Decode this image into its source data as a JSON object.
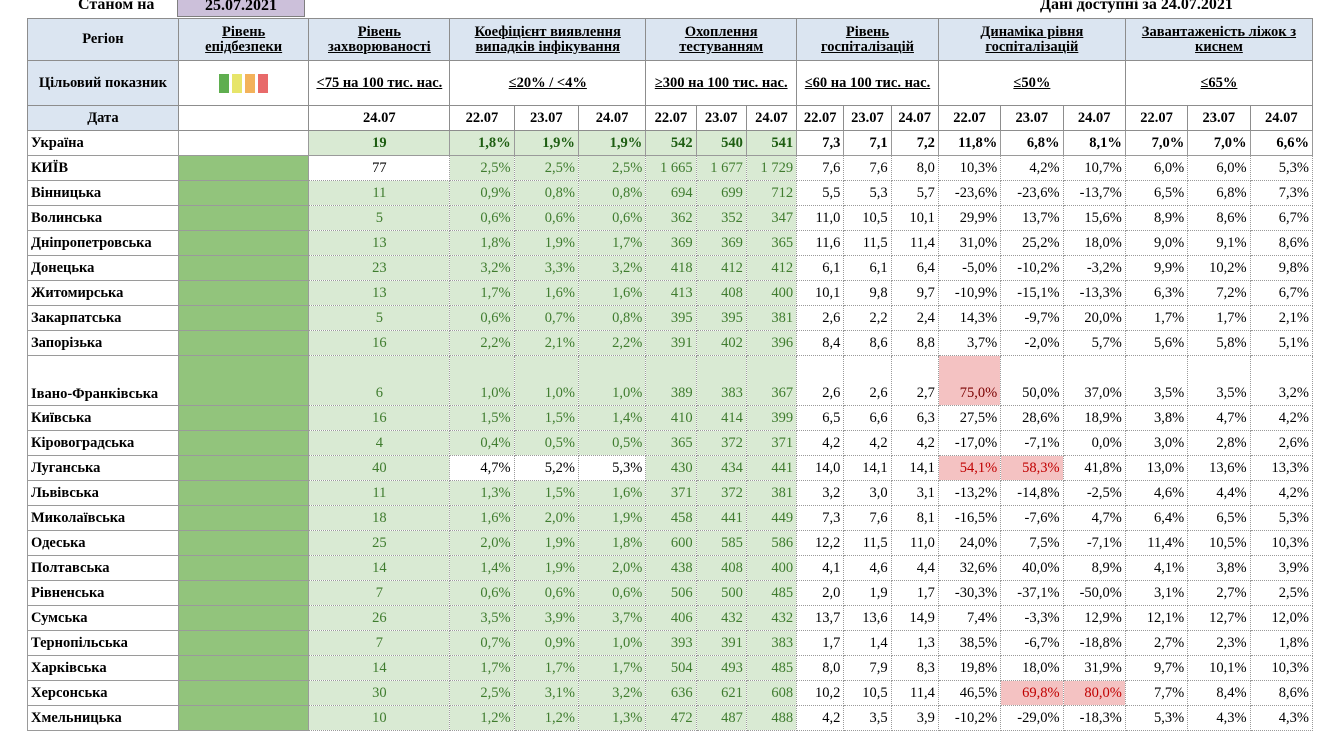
{
  "header": {
    "as_of_label": "Станом на",
    "as_of_date": "25.07.2021",
    "data_available_label": "Дані доступні за",
    "data_available_date": "24.07.2021"
  },
  "columns": {
    "region": "Регіон",
    "epi_level": "Рівень епідбезпеки",
    "incidence": "Рівень захворюваності",
    "detection": "Коефіцієнт виявлення випадків інфікування",
    "testing": "Охоплення тестуванням",
    "hospitalization": "Рівень госпіталізацій",
    "hosp_dynamics": "Динаміка рівня госпіталізацій",
    "oxygen_beds": "Завантаженість ліжок з киснем"
  },
  "target": {
    "label": "Цільовий показник",
    "incidence": "<75 на 100 тис. нас.",
    "detection": "≤20% / <4%",
    "testing": "≥300 на 100 тис. нас.",
    "hospitalization": "≤60 на 100 тис. нас.",
    "hosp_dynamics": "≤50%",
    "oxygen_beds": "≤65%",
    "legend_colors": [
      "#5fae4f",
      "#e7e56a",
      "#f3b25a",
      "#e86a6a"
    ]
  },
  "dates": {
    "label": "Дата",
    "incidence": "24.07",
    "days": [
      "22.07",
      "23.07",
      "24.07"
    ]
  },
  "rows": [
    {
      "name": "Україна",
      "inc": "19",
      "det": [
        "1,8%",
        "1,9%",
        "1,9%"
      ],
      "test": [
        "542",
        "540",
        "541"
      ],
      "hosp": [
        "7,3",
        "7,1",
        "7,2"
      ],
      "dyn": [
        "11,8%",
        "6,8%",
        "8,1%"
      ],
      "oxy": [
        "7,0%",
        "7,0%",
        "6,6%"
      ]
    },
    {
      "name": "КИЇВ",
      "inc": "77",
      "det": [
        "2,5%",
        "2,5%",
        "2,5%"
      ],
      "test": [
        "1 665",
        "1 677",
        "1 729"
      ],
      "hosp": [
        "7,6",
        "7,6",
        "8,0"
      ],
      "dyn": [
        "10,3%",
        "4,2%",
        "10,7%"
      ],
      "oxy": [
        "6,0%",
        "6,0%",
        "5,3%"
      ]
    },
    {
      "name": "Вінницька",
      "inc": "11",
      "det": [
        "0,9%",
        "0,8%",
        "0,8%"
      ],
      "test": [
        "694",
        "699",
        "712"
      ],
      "hosp": [
        "5,5",
        "5,3",
        "5,7"
      ],
      "dyn": [
        "-23,6%",
        "-23,6%",
        "-13,7%"
      ],
      "oxy": [
        "6,5%",
        "6,8%",
        "7,3%"
      ]
    },
    {
      "name": "Волинська",
      "inc": "5",
      "det": [
        "0,6%",
        "0,6%",
        "0,6%"
      ],
      "test": [
        "362",
        "352",
        "347"
      ],
      "hosp": [
        "11,0",
        "10,5",
        "10,1"
      ],
      "dyn": [
        "29,9%",
        "13,7%",
        "15,6%"
      ],
      "oxy": [
        "8,9%",
        "8,6%",
        "6,7%"
      ]
    },
    {
      "name": "Дніпропетровська",
      "inc": "13",
      "det": [
        "1,8%",
        "1,9%",
        "1,7%"
      ],
      "test": [
        "369",
        "369",
        "365"
      ],
      "hosp": [
        "11,6",
        "11,5",
        "11,4"
      ],
      "dyn": [
        "31,0%",
        "25,2%",
        "18,0%"
      ],
      "oxy": [
        "9,0%",
        "9,1%",
        "8,6%"
      ]
    },
    {
      "name": "Донецька",
      "inc": "23",
      "det": [
        "3,2%",
        "3,3%",
        "3,2%"
      ],
      "test": [
        "418",
        "412",
        "412"
      ],
      "hosp": [
        "6,1",
        "6,1",
        "6,4"
      ],
      "dyn": [
        "-5,0%",
        "-10,2%",
        "-3,2%"
      ],
      "oxy": [
        "9,9%",
        "10,2%",
        "9,8%"
      ]
    },
    {
      "name": "Житомирська",
      "inc": "13",
      "det": [
        "1,7%",
        "1,6%",
        "1,6%"
      ],
      "test": [
        "413",
        "408",
        "400"
      ],
      "hosp": [
        "10,1",
        "9,8",
        "9,7"
      ],
      "dyn": [
        "-10,9%",
        "-15,1%",
        "-13,3%"
      ],
      "oxy": [
        "6,3%",
        "7,2%",
        "6,7%"
      ]
    },
    {
      "name": "Закарпатська",
      "inc": "5",
      "det": [
        "0,6%",
        "0,7%",
        "0,8%"
      ],
      "test": [
        "395",
        "395",
        "381"
      ],
      "hosp": [
        "2,6",
        "2,2",
        "2,4"
      ],
      "dyn": [
        "14,3%",
        "-9,7%",
        "20,0%"
      ],
      "oxy": [
        "1,7%",
        "1,7%",
        "2,1%"
      ]
    },
    {
      "name": "Запорізька",
      "inc": "16",
      "det": [
        "2,2%",
        "2,1%",
        "2,2%"
      ],
      "test": [
        "391",
        "402",
        "396"
      ],
      "hosp": [
        "8,4",
        "8,6",
        "8,8"
      ],
      "dyn": [
        "3,7%",
        "-2,0%",
        "5,7%"
      ],
      "oxy": [
        "5,6%",
        "5,8%",
        "5,1%"
      ]
    },
    {
      "name": "Івано-Франківська",
      "inc": "6",
      "det": [
        "1,0%",
        "1,0%",
        "1,0%"
      ],
      "test": [
        "389",
        "383",
        "367"
      ],
      "hosp": [
        "2,6",
        "2,6",
        "2,7"
      ],
      "dyn": [
        "75,0%",
        "50,0%",
        "37,0%"
      ],
      "oxy": [
        "3,5%",
        "3,5%",
        "3,2%"
      ]
    },
    {
      "name": "Київська",
      "inc": "16",
      "det": [
        "1,5%",
        "1,5%",
        "1,4%"
      ],
      "test": [
        "410",
        "414",
        "399"
      ],
      "hosp": [
        "6,5",
        "6,6",
        "6,3"
      ],
      "dyn": [
        "27,5%",
        "28,6%",
        "18,9%"
      ],
      "oxy": [
        "3,8%",
        "4,7%",
        "4,2%"
      ]
    },
    {
      "name": "Кіровоградська",
      "inc": "4",
      "det": [
        "0,4%",
        "0,5%",
        "0,5%"
      ],
      "test": [
        "365",
        "372",
        "371"
      ],
      "hosp": [
        "4,2",
        "4,2",
        "4,2"
      ],
      "dyn": [
        "-17,0%",
        "-7,1%",
        "0,0%"
      ],
      "oxy": [
        "3,0%",
        "2,8%",
        "2,6%"
      ]
    },
    {
      "name": "Луганська",
      "inc": "40",
      "det": [
        "4,7%",
        "5,2%",
        "5,3%"
      ],
      "test": [
        "430",
        "434",
        "441"
      ],
      "hosp": [
        "14,0",
        "14,1",
        "14,1"
      ],
      "dyn": [
        "54,1%",
        "58,3%",
        "41,8%"
      ],
      "oxy": [
        "13,0%",
        "13,6%",
        "13,3%"
      ]
    },
    {
      "name": "Львівська",
      "inc": "11",
      "det": [
        "1,3%",
        "1,5%",
        "1,6%"
      ],
      "test": [
        "371",
        "372",
        "381"
      ],
      "hosp": [
        "3,2",
        "3,0",
        "3,1"
      ],
      "dyn": [
        "-13,2%",
        "-14,8%",
        "-2,5%"
      ],
      "oxy": [
        "4,6%",
        "4,4%",
        "4,2%"
      ]
    },
    {
      "name": "Миколаївська",
      "inc": "18",
      "det": [
        "1,6%",
        "2,0%",
        "1,9%"
      ],
      "test": [
        "458",
        "441",
        "449"
      ],
      "hosp": [
        "7,3",
        "7,6",
        "8,1"
      ],
      "dyn": [
        "-16,5%",
        "-7,6%",
        "4,7%"
      ],
      "oxy": [
        "6,4%",
        "6,5%",
        "5,3%"
      ]
    },
    {
      "name": "Одеська",
      "inc": "25",
      "det": [
        "2,0%",
        "1,9%",
        "1,8%"
      ],
      "test": [
        "600",
        "585",
        "586"
      ],
      "hosp": [
        "12,2",
        "11,5",
        "11,0"
      ],
      "dyn": [
        "24,0%",
        "7,5%",
        "-7,1%"
      ],
      "oxy": [
        "11,4%",
        "10,5%",
        "10,3%"
      ]
    },
    {
      "name": "Полтавська",
      "inc": "14",
      "det": [
        "1,4%",
        "1,9%",
        "2,0%"
      ],
      "test": [
        "438",
        "408",
        "400"
      ],
      "hosp": [
        "4,1",
        "4,6",
        "4,4"
      ],
      "dyn": [
        "32,6%",
        "40,0%",
        "8,9%"
      ],
      "oxy": [
        "4,1%",
        "3,8%",
        "3,9%"
      ]
    },
    {
      "name": "Рівненська",
      "inc": "7",
      "det": [
        "0,6%",
        "0,6%",
        "0,6%"
      ],
      "test": [
        "506",
        "500",
        "485"
      ],
      "hosp": [
        "2,0",
        "1,9",
        "1,7"
      ],
      "dyn": [
        "-30,3%",
        "-37,1%",
        "-50,0%"
      ],
      "oxy": [
        "3,1%",
        "2,7%",
        "2,5%"
      ]
    },
    {
      "name": "Сумська",
      "inc": "26",
      "det": [
        "3,5%",
        "3,9%",
        "3,7%"
      ],
      "test": [
        "406",
        "432",
        "432"
      ],
      "hosp": [
        "13,7",
        "13,6",
        "14,9"
      ],
      "dyn": [
        "7,4%",
        "-3,3%",
        "12,9%"
      ],
      "oxy": [
        "12,1%",
        "12,7%",
        "12,0%"
      ]
    },
    {
      "name": "Тернопільська",
      "inc": "7",
      "det": [
        "0,7%",
        "0,9%",
        "1,0%"
      ],
      "test": [
        "393",
        "391",
        "383"
      ],
      "hosp": [
        "1,7",
        "1,4",
        "1,3"
      ],
      "dyn": [
        "38,5%",
        "-6,7%",
        "-18,8%"
      ],
      "oxy": [
        "2,7%",
        "2,3%",
        "1,8%"
      ]
    },
    {
      "name": "Харківська",
      "inc": "14",
      "det": [
        "1,7%",
        "1,7%",
        "1,7%"
      ],
      "test": [
        "504",
        "493",
        "485"
      ],
      "hosp": [
        "8,0",
        "7,9",
        "8,3"
      ],
      "dyn": [
        "19,8%",
        "18,0%",
        "31,9%"
      ],
      "oxy": [
        "9,7%",
        "10,1%",
        "10,3%"
      ]
    },
    {
      "name": "Херсонська",
      "inc": "30",
      "det": [
        "2,5%",
        "3,1%",
        "3,2%"
      ],
      "test": [
        "636",
        "621",
        "608"
      ],
      "hosp": [
        "10,2",
        "10,5",
        "11,4"
      ],
      "dyn": [
        "46,5%",
        "69,8%",
        "80,0%"
      ],
      "oxy": [
        "7,7%",
        "8,4%",
        "8,6%"
      ]
    },
    {
      "name": "Хмельницька",
      "inc": "10",
      "det": [
        "1,2%",
        "1,2%",
        "1,3%"
      ],
      "test": [
        "472",
        "487",
        "488"
      ],
      "hosp": [
        "4,2",
        "3,5",
        "3,9"
      ],
      "dyn": [
        "-10,2%",
        "-29,0%",
        "-18,3%"
      ],
      "oxy": [
        "5,3%",
        "4,3%",
        "4,3%"
      ]
    }
  ]
}
